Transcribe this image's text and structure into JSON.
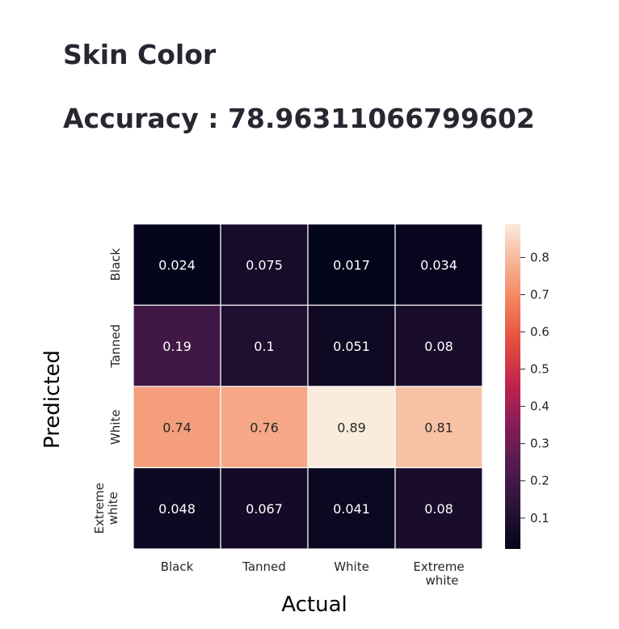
{
  "page": {
    "title": "Skin Color",
    "accuracy_text": "Accuracy : 78.96311066799602"
  },
  "chart_data": {
    "type": "heatmap",
    "xlabel": "Actual",
    "ylabel": "Predicted",
    "x_categories": [
      [
        "Black"
      ],
      [
        "Tanned"
      ],
      [
        "White"
      ],
      [
        "Extreme",
        "white"
      ]
    ],
    "y_categories": [
      [
        "Black"
      ],
      [
        "Tanned"
      ],
      [
        "White"
      ],
      [
        "Extreme",
        "white"
      ]
    ],
    "values": [
      [
        0.024,
        0.075,
        0.017,
        0.034
      ],
      [
        0.19,
        0.1,
        0.051,
        0.08
      ],
      [
        0.74,
        0.76,
        0.89,
        0.81
      ],
      [
        0.048,
        0.067,
        0.041,
        0.08
      ]
    ],
    "cell_labels": [
      [
        "0.024",
        "0.075",
        "0.017",
        "0.034"
      ],
      [
        "0.19",
        "0.1",
        "0.051",
        "0.08"
      ],
      [
        "0.74",
        "0.76",
        "0.89",
        "0.81"
      ],
      [
        "0.048",
        "0.067",
        "0.041",
        "0.08"
      ]
    ],
    "colormap": "rocket",
    "colorbar_range": [
      0.017,
      0.89
    ],
    "colorbar_ticks": [
      0.1,
      0.2,
      0.3,
      0.4,
      0.5,
      0.6,
      0.7,
      0.8
    ],
    "colorbar_tick_labels": [
      "0.1",
      "0.2",
      "0.3",
      "0.4",
      "0.5",
      "0.6",
      "0.7",
      "0.8"
    ]
  }
}
